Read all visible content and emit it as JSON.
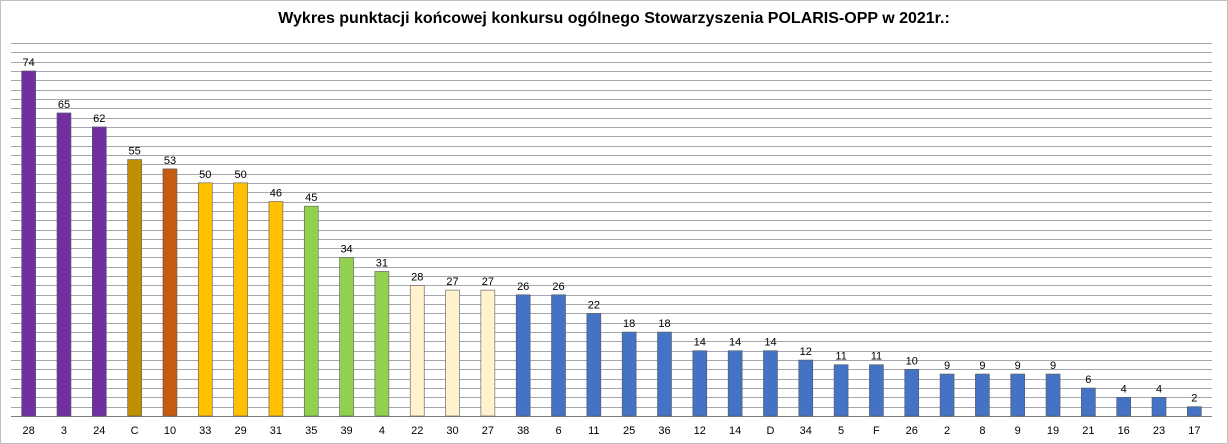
{
  "chart_data": {
    "type": "bar",
    "title": "Wykres punktacji końcowej konkursu ogólnego Stowarzyszenia POLARIS-OPP w 2021r.:",
    "xlabel": "",
    "ylabel": "",
    "categories": [
      "28",
      "3",
      "24",
      "C",
      "10",
      "33",
      "29",
      "31",
      "35",
      "39",
      "4",
      "22",
      "30",
      "27",
      "38",
      "6",
      "11",
      "25",
      "36",
      "12",
      "14",
      "D",
      "34",
      "5",
      "F",
      "26",
      "2",
      "8",
      "9",
      "19",
      "21",
      "16",
      "23",
      "17"
    ],
    "values": [
      74,
      65,
      62,
      55,
      53,
      50,
      50,
      46,
      45,
      34,
      31,
      28,
      27,
      27,
      26,
      26,
      22,
      18,
      18,
      14,
      14,
      14,
      12,
      11,
      11,
      10,
      9,
      9,
      9,
      9,
      6,
      4,
      4,
      2
    ],
    "bar_colors": [
      "#7030a0",
      "#7030a0",
      "#7030a0",
      "#bf9000",
      "#c55a11",
      "#ffc000",
      "#ffc000",
      "#ffc000",
      "#92d050",
      "#92d050",
      "#92d050",
      "#fff2cc",
      "#fff2cc",
      "#fff2cc",
      "#4472c4",
      "#4472c4",
      "#4472c4",
      "#4472c4",
      "#4472c4",
      "#4472c4",
      "#4472c4",
      "#4472c4",
      "#4472c4",
      "#4472c4",
      "#4472c4",
      "#4472c4",
      "#4472c4",
      "#4472c4",
      "#4472c4",
      "#4472c4",
      "#4472c4",
      "#4472c4",
      "#4472c4",
      "#4472c4"
    ],
    "ylim": [
      0,
      80
    ],
    "grid": true,
    "legend": "none"
  }
}
